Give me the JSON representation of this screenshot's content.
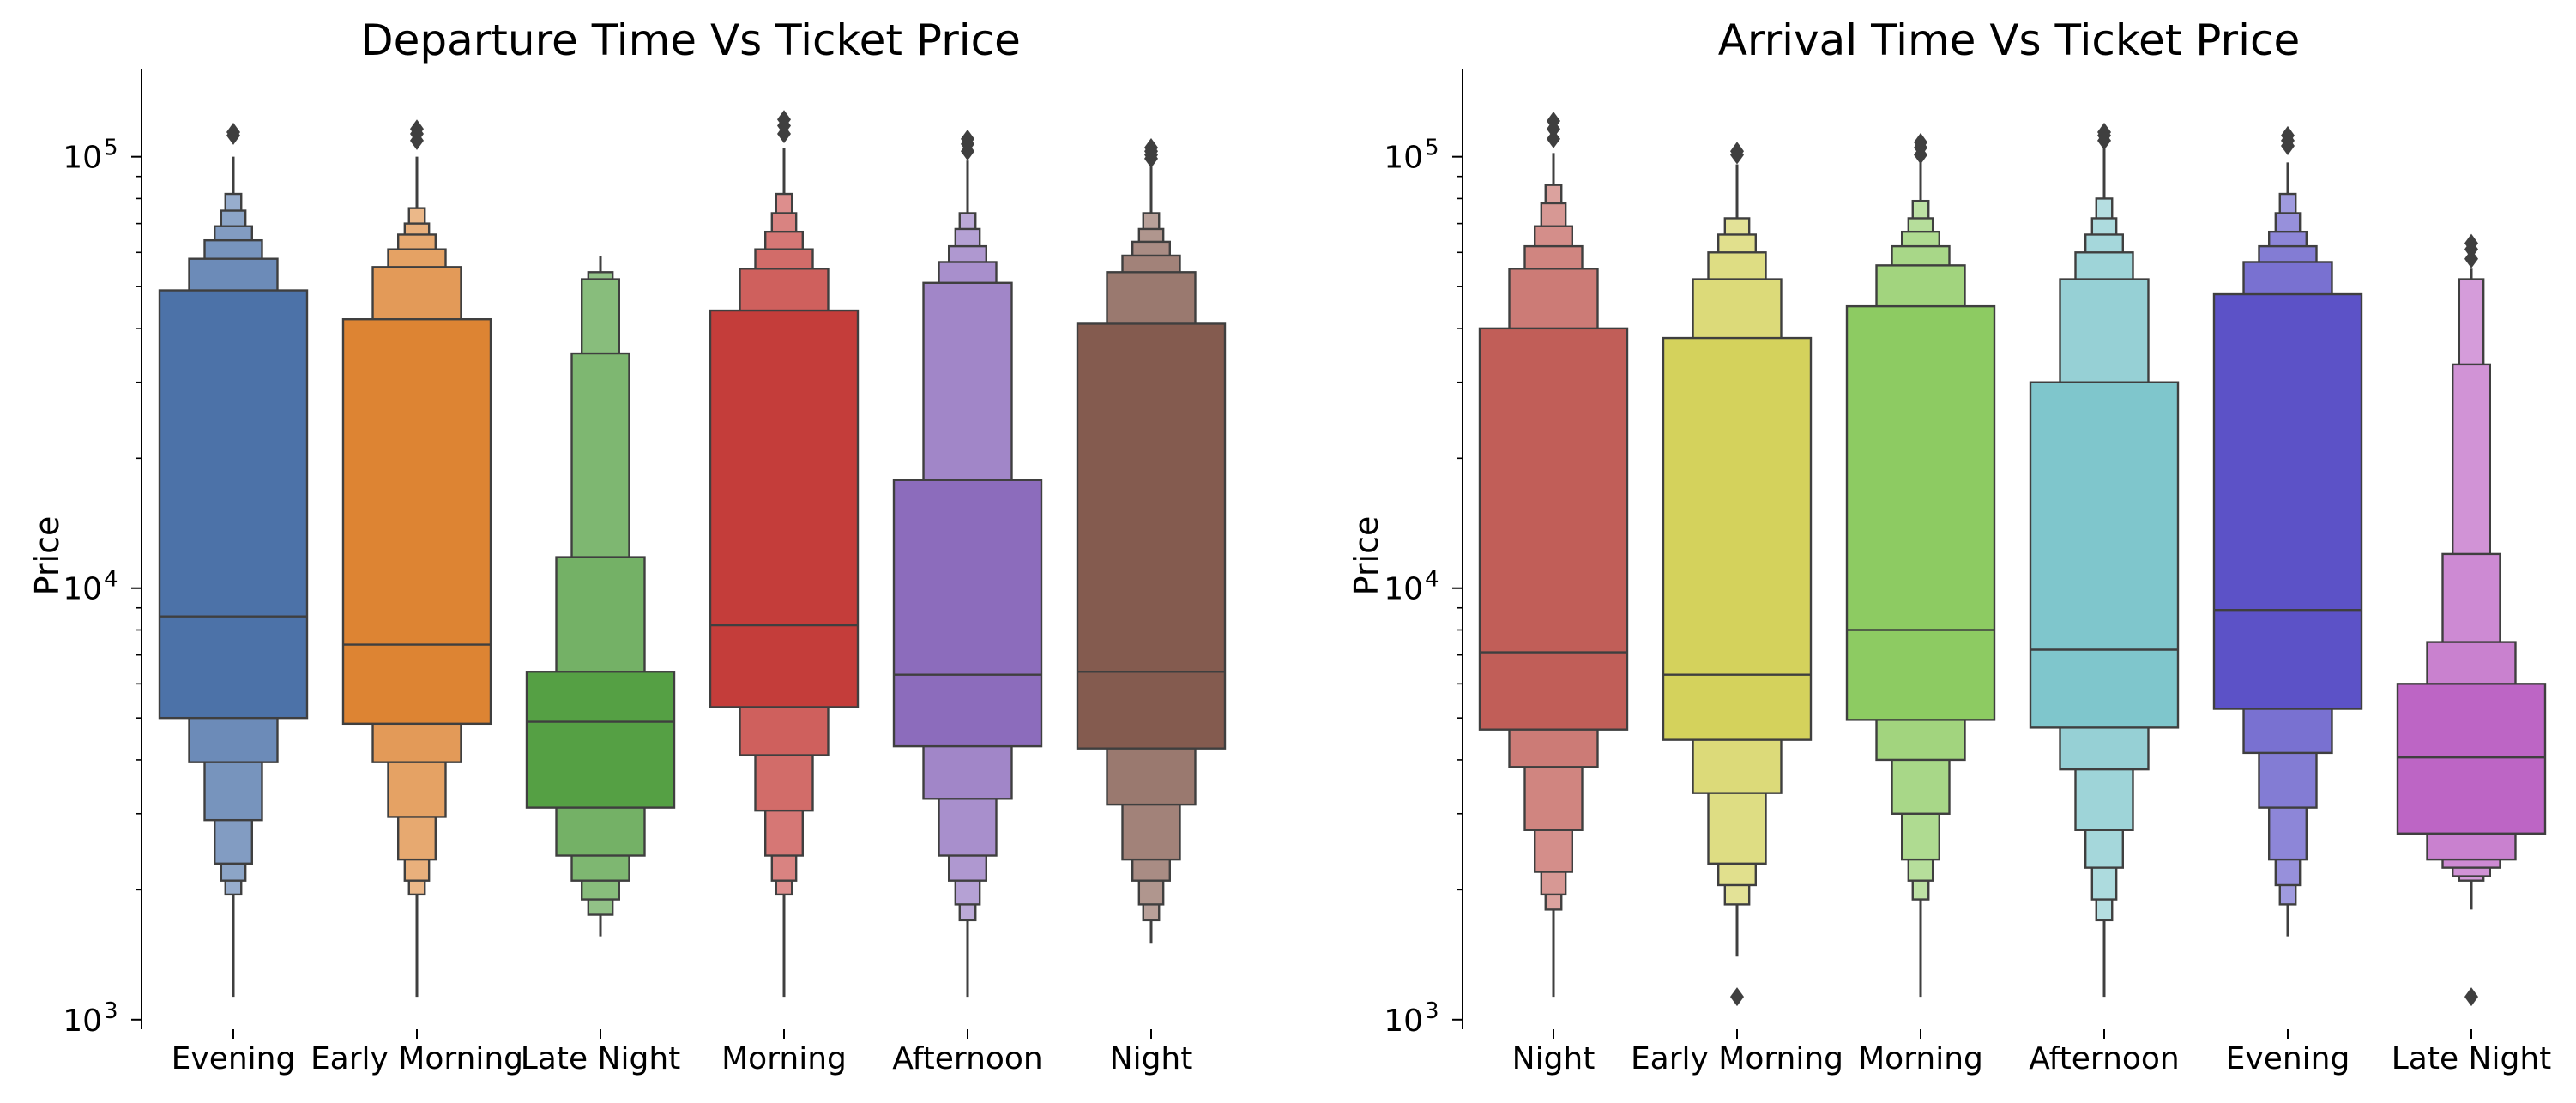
{
  "chart_data": [
    {
      "type": "boxen",
      "title": "Departure Time Vs Ticket Price",
      "xlabel": "",
      "ylabel": "Price",
      "yscale": "log",
      "ylim": [
        950,
        160000
      ],
      "yticks": [
        {
          "value": 1000,
          "base": "10",
          "exp": "3"
        },
        {
          "value": 10000,
          "base": "10",
          "exp": "4"
        },
        {
          "value": 100000,
          "base": "10",
          "exp": "5"
        }
      ],
      "grid": false,
      "legend": "none",
      "categories": [
        "Evening",
        "Early Morning",
        "Late Night",
        "Morning",
        "Afternoon",
        "Night"
      ],
      "series": [
        {
          "category": "Evening",
          "color": "#4c72a8",
          "median": 8600,
          "boxes": [
            [
              5000,
              49000
            ],
            [
              3950,
              58000
            ],
            [
              2900,
              64000
            ],
            [
              2300,
              69000
            ],
            [
              2100,
              75000
            ],
            [
              1950,
              82000
            ]
          ],
          "whisker": [
            1130,
            100000
          ],
          "outliers": [
            112000,
            114000
          ]
        },
        {
          "category": "Early Morning",
          "color": "#dd8433",
          "median": 7400,
          "boxes": [
            [
              4850,
              42000
            ],
            [
              3950,
              55500
            ],
            [
              2950,
              61000
            ],
            [
              2350,
              66000
            ],
            [
              2100,
              70000
            ],
            [
              1950,
              76000
            ]
          ],
          "whisker": [
            1130,
            100000
          ],
          "outliers": [
            109000,
            113000,
            116000
          ]
        },
        {
          "category": "Late Night",
          "color": "#55a044",
          "median": 4900,
          "boxes": [
            [
              3100,
              6400
            ],
            [
              2400,
              11800
            ],
            [
              2100,
              35000
            ],
            [
              1900,
              52000
            ],
            [
              1750,
              54000
            ]
          ],
          "whisker": [
            1560,
            59000
          ],
          "outliers": []
        },
        {
          "category": "Morning",
          "color": "#c43d3a",
          "median": 8200,
          "boxes": [
            [
              5300,
              44000
            ],
            [
              4100,
              55000
            ],
            [
              3050,
              61000
            ],
            [
              2400,
              67000
            ],
            [
              2100,
              74000
            ],
            [
              1950,
              82000
            ]
          ],
          "whisker": [
            1130,
            105000
          ],
          "outliers": [
            113000,
            118000,
            122000
          ]
        },
        {
          "category": "Afternoon",
          "color": "#8c6cbc",
          "median": 6300,
          "boxes": [
            [
              4300,
              17800
            ],
            [
              3250,
              51000
            ],
            [
              2400,
              57000
            ],
            [
              2100,
              62000
            ],
            [
              1850,
              68000
            ],
            [
              1700,
              74000
            ]
          ],
          "whisker": [
            1130,
            98000
          ],
          "outliers": [
            103000,
            107000,
            110000
          ]
        },
        {
          "category": "Night",
          "color": "#845b4f",
          "median": 6400,
          "boxes": [
            [
              4250,
              41000
            ],
            [
              3150,
              54000
            ],
            [
              2350,
              59000
            ],
            [
              2100,
              63500
            ],
            [
              1850,
              68000
            ],
            [
              1700,
              74000
            ]
          ],
          "whisker": [
            1500,
            95000
          ],
          "outliers": [
            99000,
            101000,
            103000,
            105000
          ]
        }
      ]
    },
    {
      "type": "boxen",
      "title": "Arrival Time Vs Ticket Price",
      "xlabel": "",
      "ylabel": "Price",
      "yscale": "log",
      "ylim": [
        950,
        160000
      ],
      "yticks": [
        {
          "value": 1000,
          "base": "10",
          "exp": "3"
        },
        {
          "value": 10000,
          "base": "10",
          "exp": "4"
        },
        {
          "value": 100000,
          "base": "10",
          "exp": "5"
        }
      ],
      "grid": false,
      "legend": "none",
      "categories": [
        "Night",
        "Early Morning",
        "Morning",
        "Afternoon",
        "Evening",
        "Late Night"
      ],
      "series": [
        {
          "category": "Night",
          "color": "#c15e58",
          "median": 7100,
          "boxes": [
            [
              4700,
              40000
            ],
            [
              3850,
              55000
            ],
            [
              2750,
              62000
            ],
            [
              2200,
              69000
            ],
            [
              1950,
              78000
            ],
            [
              1800,
              86000
            ]
          ],
          "whisker": [
            1130,
            102000
          ],
          "outliers": [
            110000,
            116000,
            121000
          ]
        },
        {
          "category": "Early Morning",
          "color": "#d4d25c",
          "median": 6300,
          "boxes": [
            [
              4450,
              38000
            ],
            [
              3350,
              52000
            ],
            [
              2300,
              60000
            ],
            [
              2050,
              66000
            ],
            [
              1850,
              72000
            ]
          ],
          "whisker": [
            1400,
            96000
          ],
          "outliers": [
            101000,
            103000,
            1130
          ]
        },
        {
          "category": "Morning",
          "color": "#8dcb62",
          "median": 8000,
          "boxes": [
            [
              4950,
              45000
            ],
            [
              4000,
              56000
            ],
            [
              3000,
              62000
            ],
            [
              2350,
              67000
            ],
            [
              2100,
              72000
            ],
            [
              1900,
              79000
            ]
          ],
          "whisker": [
            1130,
            97000
          ],
          "outliers": [
            101000,
            105000,
            108000
          ]
        },
        {
          "category": "Afternoon",
          "color": "#7fc6cc",
          "median": 7200,
          "boxes": [
            [
              4750,
              30000
            ],
            [
              3800,
              52000
            ],
            [
              2750,
              60000
            ],
            [
              2250,
              66000
            ],
            [
              1900,
              72000
            ],
            [
              1700,
              80000
            ]
          ],
          "whisker": [
            1130,
            105000
          ],
          "outliers": [
            109000,
            112000,
            114000
          ]
        },
        {
          "category": "Evening",
          "color": "#5c52c7",
          "median": 8900,
          "boxes": [
            [
              5250,
              48000
            ],
            [
              4150,
              57000
            ],
            [
              3100,
              62000
            ],
            [
              2350,
              67000
            ],
            [
              2050,
              74000
            ],
            [
              1850,
              82000
            ]
          ],
          "whisker": [
            1560,
            97000
          ],
          "outliers": [
            106000,
            109000,
            112000
          ]
        },
        {
          "category": "Late Night",
          "color": "#bd65c5",
          "median": 4050,
          "boxes": [
            [
              2700,
              6000
            ],
            [
              2350,
              7500
            ],
            [
              2250,
              12000
            ],
            [
              2150,
              33000
            ],
            [
              2100,
              52000
            ]
          ],
          "whisker": [
            1800,
            55000
          ],
          "outliers": [
            58000,
            61000,
            63000,
            1130
          ]
        }
      ]
    }
  ]
}
